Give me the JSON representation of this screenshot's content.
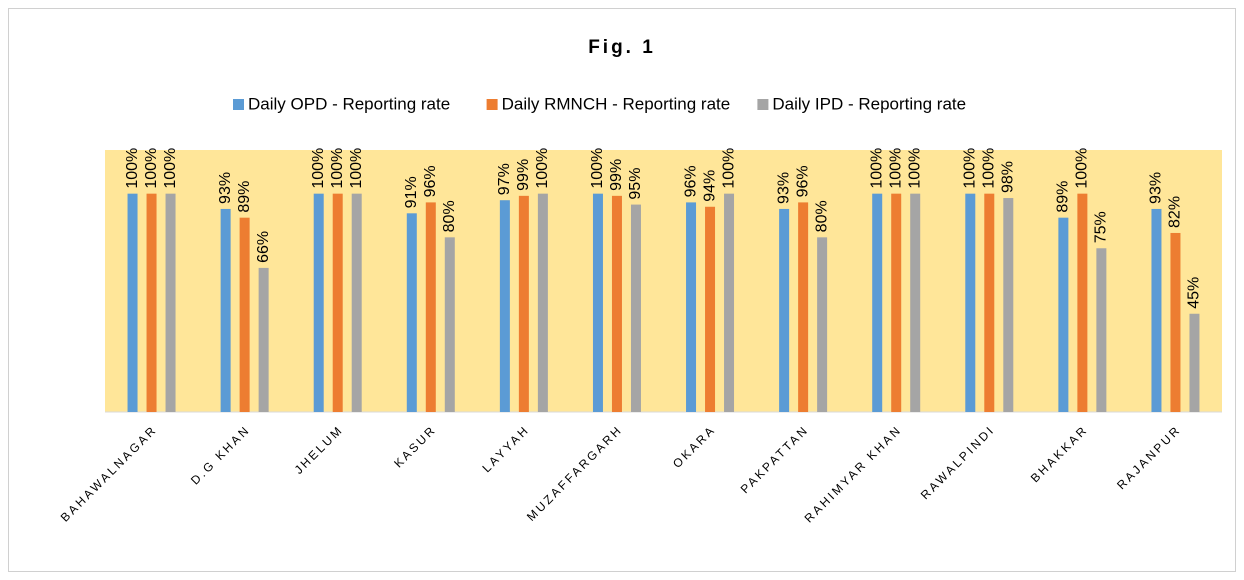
{
  "chart_data": {
    "type": "bar",
    "title": "Fig. 1",
    "categories": [
      "BAHAWALNAGAR",
      "D.G KHAN",
      "JHELUM",
      "KASUR",
      "LAYYAH",
      "MUZAFFARGARH",
      "OKARA",
      "PAKPATTAN",
      "RAHIMYAR KHAN",
      "RAWALPINDI",
      "BHAKKAR",
      "RAJANPUR"
    ],
    "series": [
      {
        "name": "Daily OPD - Reporting rate",
        "color": "#5b9bd5",
        "values": [
          100,
          93,
          100,
          91,
          97,
          100,
          96,
          93,
          100,
          100,
          89,
          93
        ],
        "value_labels": [
          "100%",
          "93%",
          "100%",
          "91%",
          "97%",
          "100%",
          "96%",
          "93%",
          "100%",
          "100%",
          "89%",
          "93%"
        ]
      },
      {
        "name": "Daily RMNCH - Reporting rate",
        "color": "#ed7d31",
        "values": [
          100,
          89,
          100,
          96,
          99,
          99,
          94,
          96,
          100,
          100,
          100,
          82
        ],
        "value_labels": [
          "100%",
          "89%",
          "100%",
          "96%",
          "99%",
          "99%",
          "94%",
          "96%",
          "100%",
          "100%",
          "100%",
          "82%"
        ]
      },
      {
        "name": "Daily IPD - Reporting rate",
        "color": "#a5a5a5",
        "values": [
          100,
          66,
          100,
          80,
          100,
          95,
          100,
          80,
          100,
          98,
          75,
          45
        ],
        "value_labels": [
          "100%",
          "66%",
          "100%",
          "80%",
          "100%",
          "95%",
          "100%",
          "80%",
          "100%",
          "98%",
          "75%",
          "45%"
        ]
      }
    ],
    "ylim": [
      0,
      120
    ],
    "legend": "top",
    "plot_background": "#ffe699"
  }
}
